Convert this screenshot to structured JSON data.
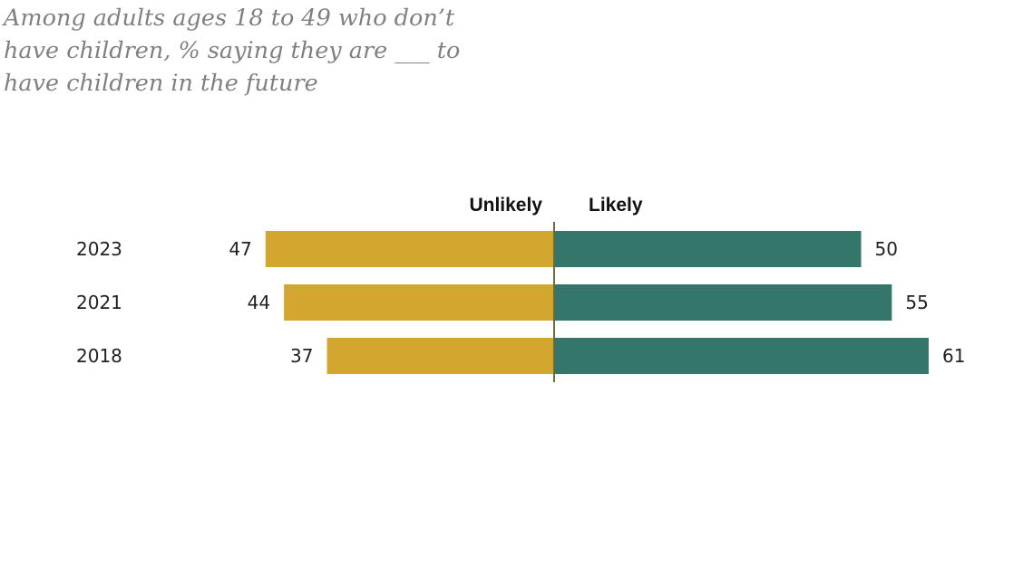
{
  "chart_data": {
    "type": "bar",
    "subtitle": "Among adults ages 18 to 49 who don’t have children, % saying they are ___ to have children in the future",
    "categories": [
      "2023",
      "2021",
      "2018"
    ],
    "series": [
      {
        "name": "Unlikely",
        "values": [
          47,
          44,
          37
        ],
        "color": "#d2a62f"
      },
      {
        "name": "Likely",
        "values": [
          50,
          55,
          61
        ],
        "color": "#35766a"
      }
    ],
    "orientation": "horizontal-diverging",
    "axis_color": "#6b6b3a"
  }
}
